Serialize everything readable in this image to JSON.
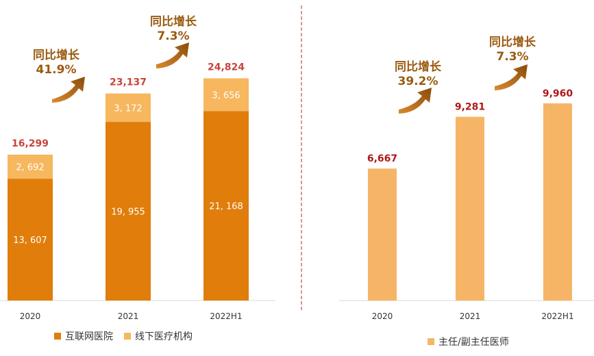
{
  "chart_data": [
    {
      "type": "bar",
      "stacked": true,
      "categories": [
        "2020",
        "2021",
        "2022H1"
      ],
      "series": [
        {
          "name": "互联网医院",
          "values": [
            13607,
            19955,
            21168
          ],
          "labels": [
            "13, 607",
            "19, 955",
            "21, 168"
          ],
          "color": "#E07D0B"
        },
        {
          "name": "线下医疗机构",
          "values": [
            2692,
            3172,
            3656
          ],
          "labels": [
            "2, 692",
            "3, 172",
            "3, 656"
          ],
          "color": "#F6B75F"
        }
      ],
      "totals": [
        "16,299",
        "23,137",
        "24,824"
      ],
      "total_color": "#C8443B",
      "growth_annotations": [
        {
          "text": "同比增长",
          "value": "41.9%"
        },
        {
          "text": "同比增长",
          "value": "7.3%"
        }
      ],
      "ylim": [
        0,
        26000
      ],
      "legend_position": "bottom"
    },
    {
      "type": "bar",
      "categories": [
        "2020",
        "2021",
        "2022H1"
      ],
      "series": [
        {
          "name": "主任/副主任医师",
          "values": [
            6667,
            9281,
            9960
          ],
          "labels": [
            "6,667",
            "9,281",
            "9,960"
          ],
          "color": "#F6B566"
        }
      ],
      "label_color": "#B01818",
      "growth_annotations": [
        {
          "text": "同比增长",
          "value": "39.2%"
        },
        {
          "text": "同比增长",
          "value": "7.3%"
        }
      ],
      "ylim": [
        0,
        12000
      ],
      "legend_position": "bottom"
    }
  ],
  "colors": {
    "divider": "#C0504D",
    "axis": "#D9D9D9",
    "arrow": "#9A5A10"
  }
}
